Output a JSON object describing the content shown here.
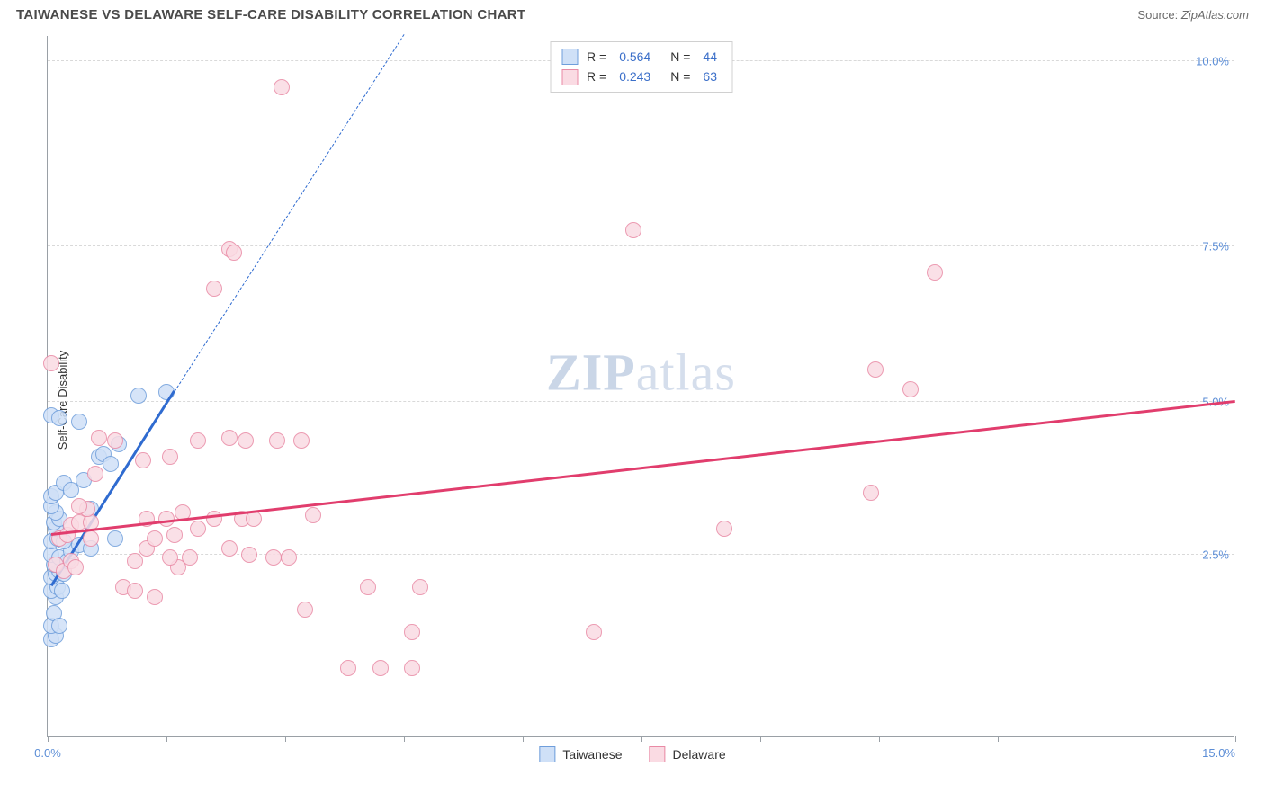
{
  "header": {
    "title": "TAIWANESE VS DELAWARE SELF-CARE DISABILITY CORRELATION CHART",
    "source_label": "Source:",
    "source_value": "ZipAtlas.com"
  },
  "watermark": {
    "bold": "ZIP",
    "rest": "atlas"
  },
  "chart": {
    "type": "scatter",
    "ylabel": "Self-Care Disability",
    "xlim": [
      0,
      15
    ],
    "ylim": [
      0,
      10.8
    ],
    "xtick_positions": [
      0,
      1.5,
      3,
      4.5,
      6,
      7.5,
      9,
      10.5,
      12,
      13.5,
      15
    ],
    "xtick_labels": {
      "0": "0.0%",
      "15": "15.0%"
    },
    "ytick_positions": [
      2.8,
      5.15,
      7.55,
      10.4
    ],
    "ytick_labels": [
      "2.5%",
      "5.0%",
      "7.5%",
      "10.0%"
    ],
    "grid_color": "#d9d9d9",
    "axis_color": "#9aa0a6",
    "background_color": "#ffffff",
    "point_radius": 9,
    "point_border_width": 1.5,
    "series": [
      {
        "name": "Taiwanese",
        "fill_color": "#cfe0f7",
        "border_color": "#6f9edb",
        "line_color": "#2f6bd0",
        "R": "0.564",
        "N": "44",
        "trend_solid": {
          "x1": 0.05,
          "y1": 2.3,
          "x2": 1.6,
          "y2": 5.3
        },
        "trend_dashed": {
          "x1": 1.6,
          "y1": 5.3,
          "x2": 4.5,
          "y2": 10.8
        },
        "points": [
          [
            0.05,
            1.5
          ],
          [
            0.1,
            1.55
          ],
          [
            0.05,
            1.7
          ],
          [
            0.08,
            1.9
          ],
          [
            0.15,
            1.7
          ],
          [
            0.1,
            2.15
          ],
          [
            0.05,
            2.25
          ],
          [
            0.12,
            2.3
          ],
          [
            0.18,
            2.25
          ],
          [
            0.05,
            2.45
          ],
          [
            0.1,
            2.5
          ],
          [
            0.15,
            2.55
          ],
          [
            0.2,
            2.5
          ],
          [
            0.08,
            2.65
          ],
          [
            0.05,
            2.8
          ],
          [
            0.15,
            2.75
          ],
          [
            0.25,
            2.7
          ],
          [
            0.3,
            2.85
          ],
          [
            0.05,
            3.0
          ],
          [
            0.12,
            3.05
          ],
          [
            0.2,
            3.0
          ],
          [
            0.4,
            2.95
          ],
          [
            0.55,
            2.9
          ],
          [
            0.1,
            3.2
          ],
          [
            0.08,
            3.3
          ],
          [
            0.15,
            3.35
          ],
          [
            0.1,
            3.45
          ],
          [
            0.05,
            3.55
          ],
          [
            0.05,
            3.7
          ],
          [
            0.1,
            3.75
          ],
          [
            0.2,
            3.9
          ],
          [
            0.3,
            3.8
          ],
          [
            0.85,
            3.05
          ],
          [
            0.55,
            3.5
          ],
          [
            0.45,
            3.95
          ],
          [
            0.65,
            4.3
          ],
          [
            0.7,
            4.35
          ],
          [
            0.8,
            4.2
          ],
          [
            0.9,
            4.5
          ],
          [
            0.4,
            4.85
          ],
          [
            0.05,
            4.95
          ],
          [
            0.15,
            4.9
          ],
          [
            1.15,
            5.25
          ],
          [
            1.5,
            5.3
          ]
        ]
      },
      {
        "name": "Delaware",
        "fill_color": "#fadbe3",
        "border_color": "#e98aa5",
        "line_color": "#e13d6d",
        "R": "0.243",
        "N": "63",
        "trend_solid": {
          "x1": 0.05,
          "y1": 3.1,
          "x2": 15.0,
          "y2": 5.15
        },
        "points": [
          [
            0.1,
            2.65
          ],
          [
            0.2,
            2.55
          ],
          [
            0.3,
            2.7
          ],
          [
            0.35,
            2.6
          ],
          [
            0.15,
            3.05
          ],
          [
            0.25,
            3.1
          ],
          [
            0.3,
            3.25
          ],
          [
            0.4,
            3.3
          ],
          [
            0.55,
            3.05
          ],
          [
            0.55,
            3.3
          ],
          [
            0.5,
            3.5
          ],
          [
            0.4,
            3.55
          ],
          [
            0.6,
            4.05
          ],
          [
            0.65,
            4.6
          ],
          [
            0.85,
            4.55
          ],
          [
            0.05,
            5.75
          ],
          [
            0.95,
            2.3
          ],
          [
            1.1,
            2.25
          ],
          [
            1.35,
            2.15
          ],
          [
            1.65,
            2.6
          ],
          [
            1.1,
            2.7
          ],
          [
            1.55,
            2.75
          ],
          [
            1.8,
            2.75
          ],
          [
            1.25,
            2.9
          ],
          [
            1.35,
            3.05
          ],
          [
            1.6,
            3.1
          ],
          [
            1.9,
            3.2
          ],
          [
            1.25,
            3.35
          ],
          [
            1.5,
            3.35
          ],
          [
            1.7,
            3.45
          ],
          [
            1.2,
            4.25
          ],
          [
            1.55,
            4.3
          ],
          [
            1.9,
            4.55
          ],
          [
            2.3,
            2.9
          ],
          [
            2.55,
            2.8
          ],
          [
            2.85,
            2.75
          ],
          [
            2.1,
            3.35
          ],
          [
            2.45,
            3.35
          ],
          [
            2.6,
            3.35
          ],
          [
            2.3,
            4.6
          ],
          [
            2.5,
            4.55
          ],
          [
            2.9,
            4.55
          ],
          [
            2.3,
            7.5
          ],
          [
            2.1,
            6.9
          ],
          [
            2.95,
            10.0
          ],
          [
            3.25,
            1.95
          ],
          [
            3.05,
            2.75
          ],
          [
            3.35,
            3.4
          ],
          [
            3.2,
            4.55
          ],
          [
            3.8,
            1.05
          ],
          [
            4.05,
            2.3
          ],
          [
            4.2,
            1.05
          ],
          [
            4.7,
            2.3
          ],
          [
            4.6,
            1.05
          ],
          [
            4.6,
            1.6
          ],
          [
            6.9,
            1.6
          ],
          [
            7.4,
            7.8
          ],
          [
            8.55,
            3.2
          ],
          [
            10.4,
            3.75
          ],
          [
            10.45,
            5.65
          ],
          [
            10.9,
            5.35
          ],
          [
            11.2,
            7.15
          ],
          [
            2.35,
            7.45
          ]
        ]
      }
    ],
    "legend_bottom": [
      "Taiwanese",
      "Delaware"
    ]
  }
}
